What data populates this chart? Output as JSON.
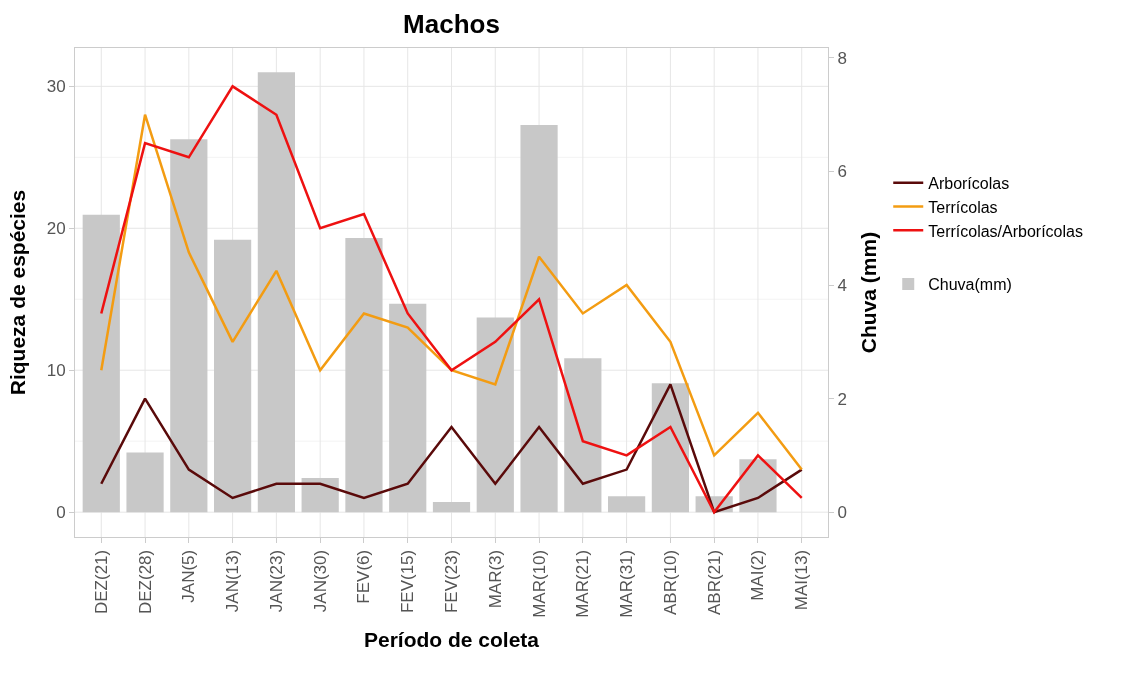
{
  "chart_data": {
    "type": "line",
    "title": "Machos",
    "xlabel": "Período de coleta",
    "ylabel": "Riqueza de espécies",
    "y2label": "Chuva (mm)",
    "categories": [
      "DEZ(21)",
      "DEZ(28)",
      "JAN(5)",
      "JAN(13)",
      "JAN(23)",
      "JAN(30)",
      "FEV(6)",
      "FEV(15)",
      "FEV(23)",
      "MAR(3)",
      "MAR(10)",
      "MAR(21)",
      "MAR(31)",
      "ABR(10)",
      "ABR(21)",
      "MAI(2)",
      "MAI(13)"
    ],
    "series": [
      {
        "name": "Arborícolas",
        "color": "#5a0a0a",
        "values": [
          2,
          8,
          3,
          1,
          2,
          2,
          1,
          2,
          6,
          2,
          6,
          2,
          3,
          9,
          0,
          1,
          3
        ]
      },
      {
        "name": "Terrícolas",
        "color": "#f39c12",
        "values": [
          10,
          28,
          18.3,
          12,
          17,
          10,
          14,
          13,
          10,
          9,
          18,
          14,
          16,
          12,
          4,
          7,
          3
        ]
      },
      {
        "name": "Terrícolas/Arborícolas",
        "color": "#ee1111",
        "values": [
          14,
          26,
          25,
          30,
          28,
          20,
          21,
          14,
          10,
          12,
          15,
          5,
          4,
          6,
          0,
          4,
          1
        ]
      },
      {
        "name": "Chuva(mm)",
        "type": "bar",
        "axis": "y2",
        "color": "#c8c8c8",
        "values": [
          5.24,
          1.05,
          6.57,
          4.8,
          7.75,
          0.6,
          4.83,
          3.67,
          0.18,
          3.43,
          6.82,
          2.71,
          0.28,
          2.27,
          0.28,
          0.93,
          0
        ]
      }
    ],
    "ylim": [
      -1.75,
      32.7
    ],
    "yticks": [
      0,
      10,
      20,
      30
    ],
    "y2lim": [
      -0.4375,
      8.175
    ],
    "y2ticks": [
      0,
      2,
      4,
      6,
      8
    ],
    "grid": true,
    "legend": "right",
    "line_style": "solid",
    "marker": "none"
  }
}
